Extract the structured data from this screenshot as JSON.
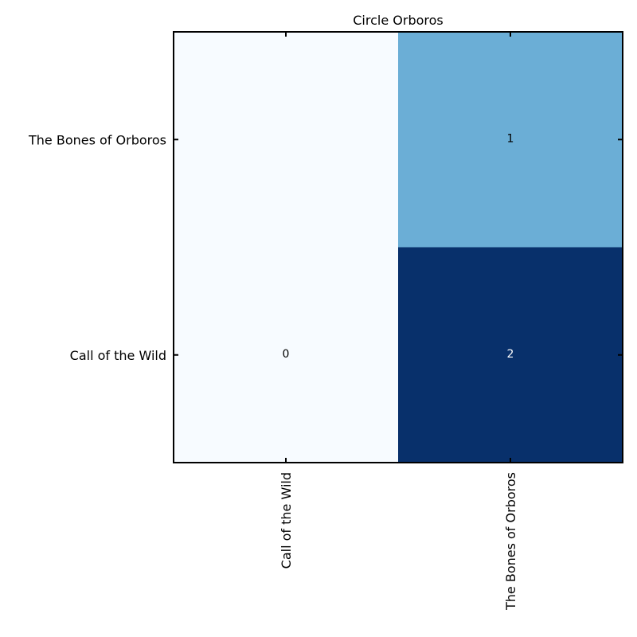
{
  "chart_data": {
    "type": "heatmap",
    "title": "Circle Orboros",
    "x_categories": [
      "Call of the Wild",
      "The Bones of Orboros"
    ],
    "y_categories": [
      "The Bones of Orboros",
      "Call of the Wild"
    ],
    "cells": [
      {
        "x": "Call of the Wild",
        "y": "The Bones of Orboros",
        "value": null,
        "label": ""
      },
      {
        "x": "The Bones of Orboros",
        "y": "The Bones of Orboros",
        "value": 1,
        "label": "1"
      },
      {
        "x": "Call of the Wild",
        "y": "Call of the Wild",
        "value": 0,
        "label": "0"
      },
      {
        "x": "The Bones of Orboros",
        "y": "Call of the Wild",
        "value": 2,
        "label": "2"
      }
    ],
    "colormap": "Blues",
    "value_range": [
      0,
      2
    ],
    "colors": {
      "low": "#f7fbff",
      "mid": "#6baed6",
      "high": "#08306b"
    },
    "grid": false,
    "legend": "none"
  }
}
